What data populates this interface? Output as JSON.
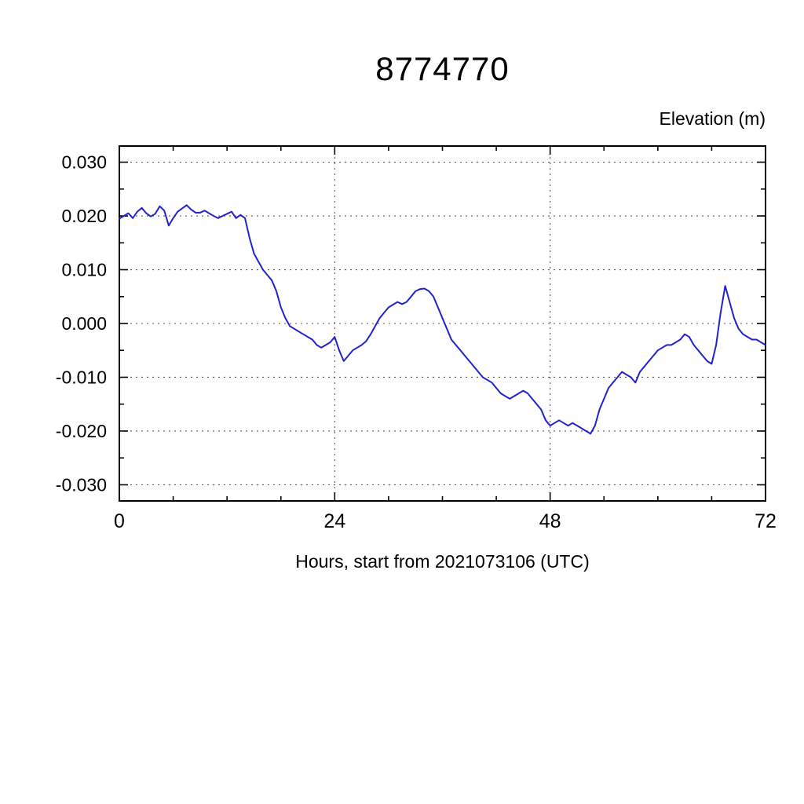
{
  "chart_data": {
    "type": "line",
    "title": "8774770",
    "ylabel": "Elevation (m)",
    "xlabel": "Hours, start from 2021073106 (UTC)",
    "xlim": [
      0,
      72
    ],
    "ylim": [
      -0.033,
      0.033
    ],
    "xticks": [
      0,
      24,
      48,
      72
    ],
    "x_minor_step": 6,
    "yticks": [
      0.03,
      0.02,
      0.01,
      0.0,
      -0.01,
      -0.02,
      -0.03
    ],
    "y_minor_step": 0.005,
    "grid": "dashed",
    "legend": "none",
    "line_color": "#2222cc",
    "axis_color": "#000000",
    "grid_color": "#555555",
    "series_name": "elevation",
    "x_start": 0,
    "x_step": 0.5,
    "values": [
      0.0195,
      0.02,
      0.0205,
      0.0196,
      0.0208,
      0.0215,
      0.0205,
      0.0199,
      0.0204,
      0.0218,
      0.021,
      0.0182,
      0.0196,
      0.0208,
      0.0214,
      0.022,
      0.0212,
      0.0206,
      0.0206,
      0.021,
      0.0205,
      0.02,
      0.0196,
      0.02,
      0.0204,
      0.0208,
      0.0196,
      0.0202,
      0.0196,
      0.016,
      0.013,
      0.0115,
      0.01,
      0.009,
      0.008,
      0.006,
      0.003,
      0.001,
      -0.0005,
      -0.001,
      -0.0015,
      -0.002,
      -0.0025,
      -0.003,
      -0.004,
      -0.0045,
      -0.004,
      -0.0035,
      -0.0025,
      -0.005,
      -0.007,
      -0.006,
      -0.005,
      -0.0045,
      -0.004,
      -0.0033,
      -0.002,
      -0.0005,
      0.001,
      0.002,
      0.003,
      0.0035,
      0.004,
      0.0036,
      0.004,
      0.005,
      0.006,
      0.0064,
      0.0065,
      0.006,
      0.005,
      0.003,
      0.001,
      -0.001,
      -0.003,
      -0.004,
      -0.005,
      -0.006,
      -0.007,
      -0.008,
      -0.009,
      -0.01,
      -0.0105,
      -0.011,
      -0.012,
      -0.013,
      -0.0135,
      -0.014,
      -0.0135,
      -0.013,
      -0.0125,
      -0.013,
      -0.014,
      -0.015,
      -0.016,
      -0.018,
      -0.019,
      -0.0185,
      -0.018,
      -0.0185,
      -0.019,
      -0.0185,
      -0.019,
      -0.0195,
      -0.02,
      -0.0205,
      -0.019,
      -0.016,
      -0.014,
      -0.012,
      -0.011,
      -0.01,
      -0.009,
      -0.0095,
      -0.01,
      -0.011,
      -0.009,
      -0.008,
      -0.007,
      -0.006,
      -0.005,
      -0.0045,
      -0.004,
      -0.004,
      -0.0035,
      -0.003,
      -0.002,
      -0.0025,
      -0.004,
      -0.005,
      -0.006,
      -0.007,
      -0.0075,
      -0.004,
      0.002,
      0.007,
      0.004,
      0.001,
      -0.001,
      -0.002,
      -0.0025,
      -0.003,
      -0.003,
      -0.0035,
      -0.004
    ]
  }
}
